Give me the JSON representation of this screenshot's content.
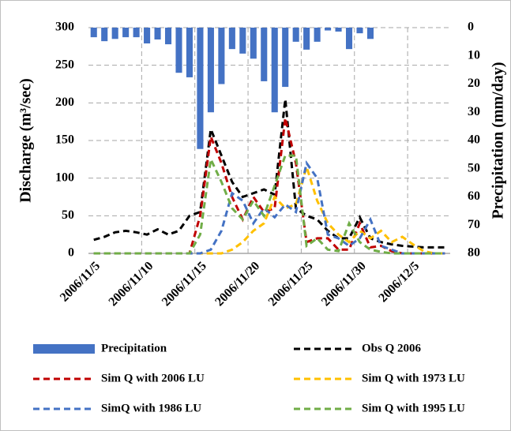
{
  "chart_data": {
    "type": "combo",
    "categories": [
      "2006/11/5",
      null,
      null,
      null,
      null,
      "2006/11/10",
      null,
      null,
      null,
      null,
      "2006/11/15",
      null,
      null,
      null,
      null,
      "2006/11/20",
      null,
      null,
      null,
      null,
      "2006/11/25",
      null,
      null,
      null,
      null,
      "2006/11/30",
      null,
      null,
      null,
      null,
      "2006/12/5",
      null,
      null,
      null
    ],
    "y_label": "Discharge (m³/sec)",
    "y2_label": "Precipitation (mm/day)",
    "ylim": [
      0,
      300
    ],
    "yticks": [
      0,
      50,
      100,
      150,
      200,
      250,
      300
    ],
    "y2lim": [
      0,
      80
    ],
    "y2ticks": [
      0,
      10,
      20,
      30,
      40,
      50,
      60,
      70,
      80
    ],
    "y2_inverted": true,
    "grid": true,
    "series": [
      {
        "name": "Precipitation",
        "kind": "bar",
        "axis": "y2",
        "color": "#4472c4",
        "values": [
          3.4,
          4.8,
          4,
          3.4,
          3.4,
          5.6,
          4.2,
          5.9,
          16,
          17.6,
          43,
          30,
          20,
          7.6,
          9.2,
          11,
          19,
          30,
          21,
          5,
          7.8,
          5,
          1,
          1.4,
          7.6,
          2,
          4,
          0,
          0,
          0,
          0,
          0,
          0,
          0
        ]
      },
      {
        "name": "Obs Q 2006",
        "kind": "line",
        "color": "#000000",
        "values": [
          18,
          22,
          28,
          30,
          28,
          25,
          32,
          25,
          30,
          50,
          55,
          165,
          130,
          95,
          75,
          80,
          85,
          78,
          205,
          60,
          50,
          45,
          30,
          20,
          20,
          48,
          20,
          15,
          12,
          10,
          9,
          8,
          8,
          8
        ]
      },
      {
        "name": "Sim Q with 2006 LU",
        "kind": "line",
        "color": "#c00000",
        "values": [
          0,
          0,
          0,
          0,
          0,
          0,
          0,
          0,
          0,
          0,
          50,
          155,
          120,
          75,
          45,
          75,
          55,
          60,
          180,
          120,
          15,
          20,
          20,
          5,
          5,
          40,
          8,
          10,
          3,
          0,
          0,
          0,
          0,
          0
        ]
      },
      {
        "name": "Sim Q with 1973 LU",
        "kind": "line",
        "color": "#ffc000",
        "values": [
          0,
          0,
          0,
          0,
          0,
          0,
          0,
          0,
          0,
          0,
          0,
          0,
          0,
          5,
          15,
          30,
          40,
          75,
          60,
          65,
          115,
          70,
          40,
          25,
          15,
          30,
          20,
          30,
          15,
          22,
          12,
          3,
          0,
          0
        ]
      },
      {
        "name": "SimQ with 1986 LU",
        "kind": "line",
        "color": "#4472c4",
        "values": [
          0,
          0,
          0,
          0,
          0,
          0,
          0,
          0,
          0,
          0,
          0,
          5,
          30,
          80,
          70,
          40,
          60,
          48,
          65,
          55,
          120,
          100,
          25,
          20,
          10,
          20,
          45,
          10,
          5,
          0,
          0,
          0,
          0,
          0
        ]
      },
      {
        "name": "Sim Q with 1995 LU",
        "kind": "line",
        "color": "#70ad47",
        "values": [
          0,
          0,
          0,
          0,
          0,
          0,
          0,
          0,
          0,
          0,
          25,
          125,
          95,
          60,
          45,
          70,
          50,
          90,
          130,
          130,
          10,
          20,
          5,
          3,
          40,
          15,
          5,
          2,
          0,
          0,
          0,
          0,
          0,
          0
        ]
      }
    ]
  }
}
